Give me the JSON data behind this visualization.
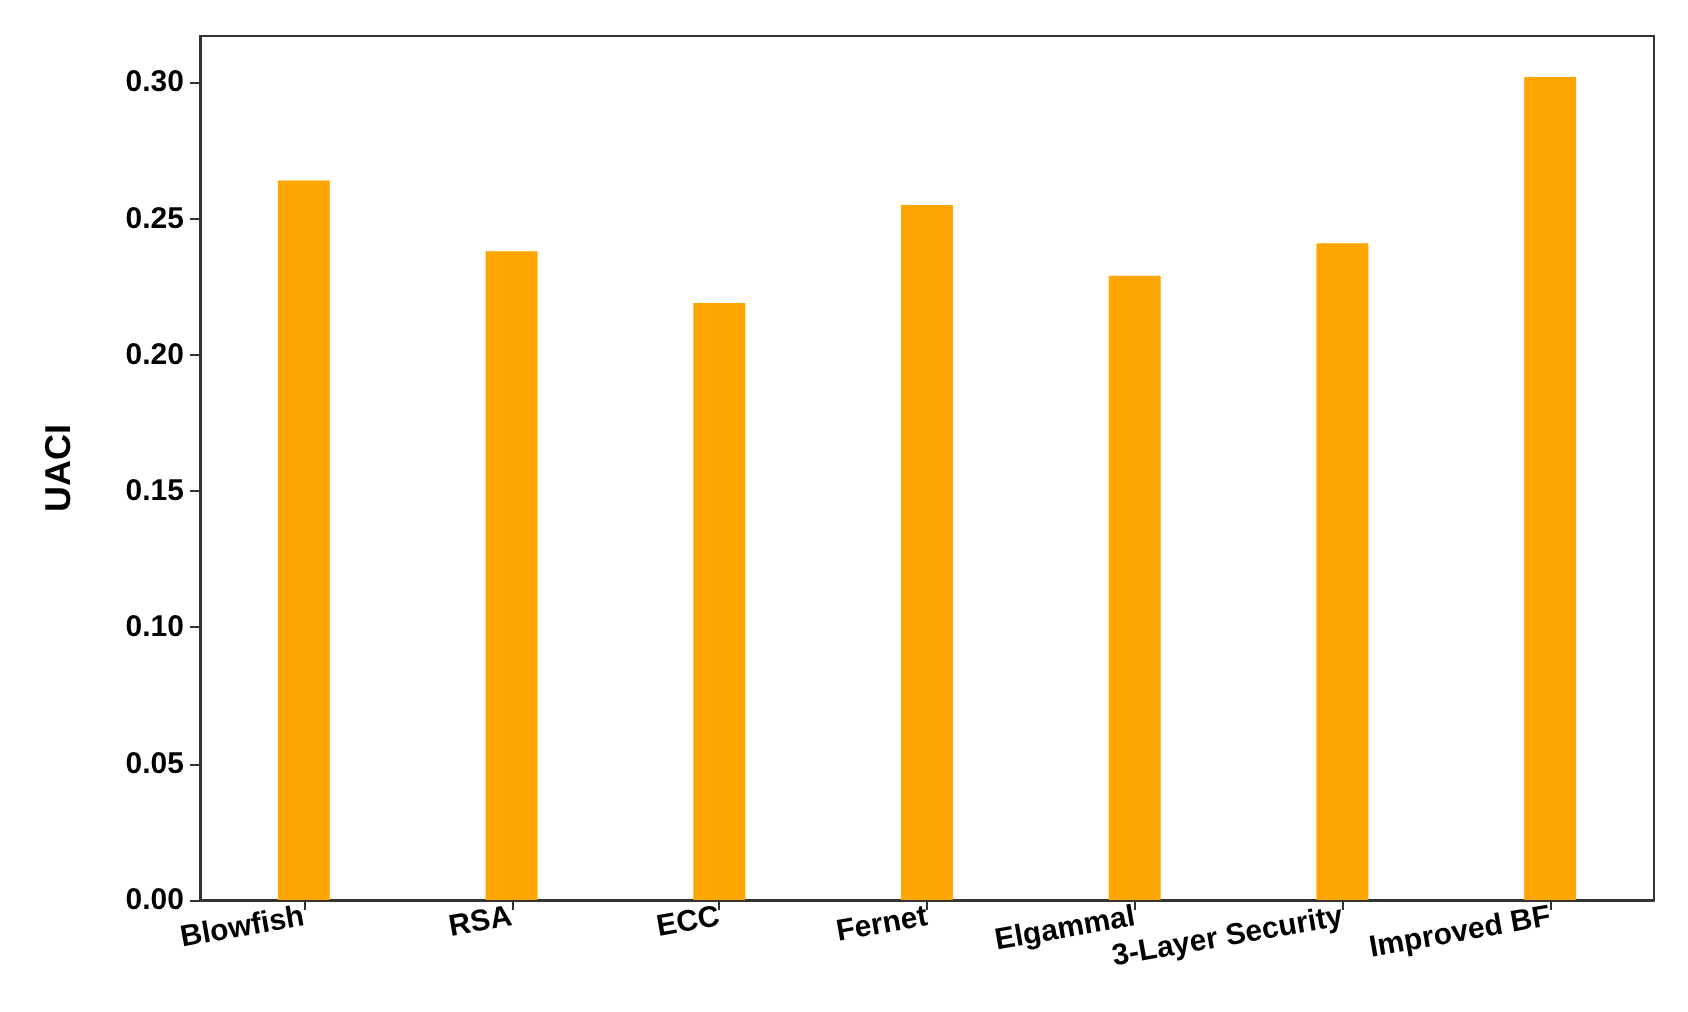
{
  "chart_data": {
    "type": "bar",
    "ylabel": "UACI",
    "categories": [
      "Blowfish",
      "RSA",
      "ECC",
      "Fernet",
      "Elgammal",
      "3-Layer Security",
      "Improved BF"
    ],
    "values": [
      0.264,
      0.238,
      0.219,
      0.255,
      0.229,
      0.241,
      0.302
    ],
    "color": "#ffa500",
    "ylim": [
      0,
      0.317
    ],
    "yticks": [
      {
        "value": 0,
        "label": "0.00"
      },
      {
        "value": 0.05,
        "label": "0.05"
      },
      {
        "value": 0.1,
        "label": "0.10"
      },
      {
        "value": 0.15,
        "label": "0.15"
      },
      {
        "value": 0.2,
        "label": "0.20"
      },
      {
        "value": 0.25,
        "label": "0.25"
      },
      {
        "value": 0.3,
        "label": "0.30"
      }
    ],
    "grid": false
  }
}
